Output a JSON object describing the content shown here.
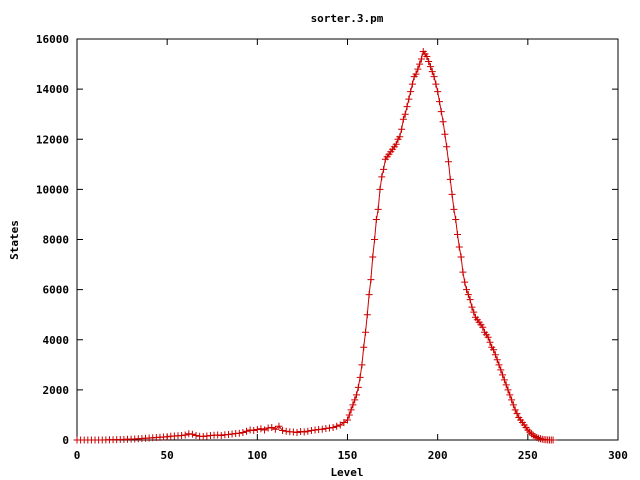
{
  "chart_data": {
    "type": "line",
    "title": "sorter.3.pm",
    "xlabel": "Level",
    "ylabel": "States",
    "xlim": [
      0,
      300
    ],
    "ylim": [
      0,
      16000
    ],
    "x_ticks": [
      "0",
      "50",
      "100",
      "150",
      "200",
      "250",
      "300"
    ],
    "y_ticks": [
      "0",
      "2000",
      "4000",
      "6000",
      "8000",
      "10000",
      "12000",
      "14000",
      "16000"
    ],
    "grid": false,
    "legend": "none",
    "marker": "plus",
    "color": "#cc0000",
    "series": [
      {
        "x": [
          0,
          2,
          4,
          6,
          8,
          10,
          12,
          14,
          16,
          18,
          20,
          22,
          24,
          26,
          28,
          30,
          32,
          34,
          36,
          38,
          40,
          42,
          44,
          46,
          48,
          50,
          52,
          54,
          56,
          58,
          60,
          62,
          64,
          66,
          68,
          70,
          72,
          74,
          76,
          78,
          80,
          82,
          84,
          86,
          88,
          90,
          92,
          94,
          96,
          98,
          100,
          102,
          104,
          106,
          108,
          110,
          112,
          114,
          116,
          118,
          120,
          122,
          124,
          126,
          128,
          130,
          132,
          134,
          136,
          138,
          140,
          142,
          144,
          146,
          148,
          150,
          151,
          152,
          153,
          154,
          155,
          156,
          157,
          158,
          159,
          160,
          161,
          162,
          163,
          164,
          165,
          166,
          167,
          168,
          169,
          170,
          171,
          172,
          173,
          174,
          175,
          176,
          177,
          178,
          179,
          180,
          181,
          182,
          183,
          184,
          185,
          186,
          187,
          188,
          189,
          190,
          191,
          192,
          193,
          194,
          195,
          196,
          197,
          198,
          199,
          200,
          201,
          202,
          203,
          204,
          205,
          206,
          207,
          208,
          209,
          210,
          211,
          212,
          213,
          214,
          215,
          216,
          217,
          218,
          219,
          220,
          221,
          222,
          223,
          224,
          225,
          226,
          227,
          228,
          229,
          230,
          231,
          232,
          233,
          234,
          235,
          236,
          237,
          238,
          239,
          240,
          241,
          242,
          243,
          244,
          245,
          246,
          247,
          248,
          249,
          250,
          251,
          252,
          253,
          254,
          255,
          256,
          257,
          258,
          259,
          260,
          261,
          262,
          263,
          264
        ],
        "y": [
          0,
          0,
          0,
          0,
          0,
          0,
          0,
          0,
          5,
          10,
          10,
          15,
          20,
          25,
          30,
          35,
          40,
          50,
          60,
          70,
          80,
          90,
          100,
          110,
          120,
          130,
          150,
          160,
          170,
          180,
          200,
          250,
          230,
          180,
          150,
          140,
          160,
          180,
          190,
          200,
          180,
          210,
          220,
          240,
          260,
          270,
          300,
          350,
          400,
          380,
          420,
          450,
          400,
          480,
          500,
          430,
          550,
          380,
          350,
          330,
          320,
          300,
          340,
          320,
          350,
          380,
          400,
          420,
          430,
          460,
          480,
          500,
          550,
          600,
          700,
          800,
          1000,
          1200,
          1400,
          1600,
          1800,
          2100,
          2500,
          3000,
          3700,
          4300,
          5000,
          5800,
          6400,
          7300,
          8000,
          8800,
          9200,
          10000,
          10500,
          10800,
          11200,
          11300,
          11400,
          11500,
          11600,
          11700,
          11800,
          12000,
          12100,
          12400,
          12800,
          13000,
          13300,
          13600,
          13900,
          14200,
          14500,
          14600,
          14800,
          15000,
          15200,
          15500,
          15400,
          15300,
          15100,
          14900,
          14700,
          14500,
          14200,
          13900,
          13500,
          13100,
          12700,
          12200,
          11700,
          11100,
          10400,
          9800,
          9200,
          8800,
          8200,
          7700,
          7300,
          6700,
          6300,
          6000,
          5800,
          5600,
          5300,
          5100,
          4900,
          4800,
          4700,
          4600,
          4500,
          4300,
          4200,
          4100,
          3900,
          3700,
          3600,
          3400,
          3200,
          3000,
          2800,
          2600,
          2400,
          2200,
          2000,
          1800,
          1600,
          1400,
          1200,
          1050,
          900,
          800,
          700,
          600,
          500,
          400,
          320,
          250,
          190,
          140,
          100,
          70,
          50,
          30,
          20,
          10,
          5,
          0,
          0,
          0
        ]
      }
    ]
  }
}
